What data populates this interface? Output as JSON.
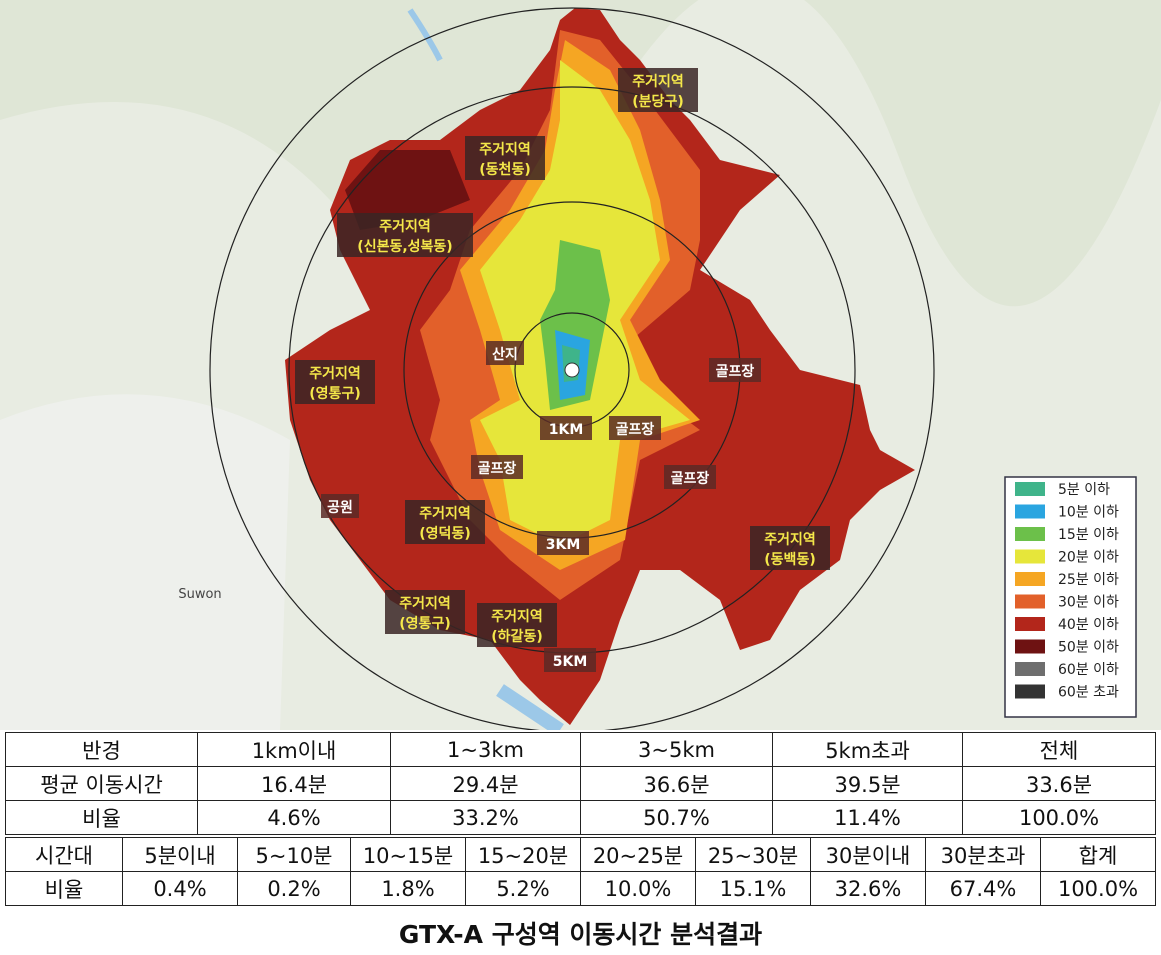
{
  "map": {
    "labels": [
      [
        "주거지역",
        "(분당구)"
      ],
      [
        "주거지역",
        "(동천동)"
      ],
      [
        "주거지역",
        "(신본동,성복동)"
      ],
      [
        "산지"
      ],
      [
        "주거지역",
        "(영통구)"
      ],
      [
        "골프장"
      ],
      [
        "1KM"
      ],
      [
        "골프장"
      ],
      [
        "골프장"
      ],
      [
        "골프장"
      ],
      [
        "공원"
      ],
      [
        "주거지역",
        "(영덕동)"
      ],
      [
        "3KM"
      ],
      [
        "주거지역",
        "(동백동)"
      ],
      [
        "주거지역",
        "(영통구)"
      ],
      [
        "주거지역",
        "(하갈동)"
      ],
      [
        "5KM"
      ]
    ],
    "place_names": [
      "Suwon"
    ],
    "legend": [
      {
        "name": "5분 이하",
        "color": "#3fb48a"
      },
      {
        "name": "10분 이하",
        "color": "#2aa5e0"
      },
      {
        "name": "15분 이하",
        "color": "#6cc04a"
      },
      {
        "name": "20분 이하",
        "color": "#e6e63a"
      },
      {
        "name": "25분 이하",
        "color": "#f5a623"
      },
      {
        "name": "30분 이하",
        "color": "#e2602a"
      },
      {
        "name": "40분 이하",
        "color": "#b3261b"
      },
      {
        "name": "50분 이하",
        "color": "#6e1212"
      },
      {
        "name": "60분 이하",
        "color": "#6e6e6e"
      },
      {
        "name": "60분 초과",
        "color": "#333333"
      }
    ]
  },
  "table1": {
    "rows": [
      [
        "반경",
        "1km이내",
        "1~3km",
        "3~5km",
        "5km초과",
        "전체"
      ],
      [
        "평균 이동시간",
        "16.4분",
        "29.4분",
        "36.6분",
        "39.5분",
        "33.6분"
      ],
      [
        "비율",
        "4.6%",
        "33.2%",
        "50.7%",
        "11.4%",
        "100.0%"
      ]
    ]
  },
  "table2": {
    "rows": [
      [
        "시간대",
        "5분이내",
        "5~10분",
        "10~15분",
        "15~20분",
        "20~25분",
        "25~30분",
        "30분이내",
        "30분초과",
        "합계"
      ],
      [
        "비율",
        "0.4%",
        "0.2%",
        "1.8%",
        "5.2%",
        "10.0%",
        "15.1%",
        "32.6%",
        "67.4%",
        "100.0%"
      ]
    ]
  },
  "caption": "GTX-A 구성역 이동시간 분석결과"
}
